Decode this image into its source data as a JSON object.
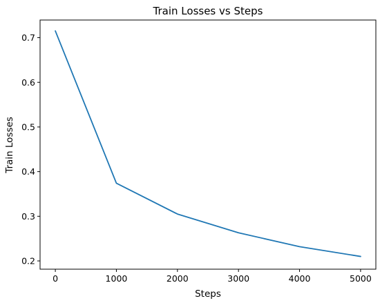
{
  "chart_data": {
    "type": "line",
    "title": "Train Losses vs Steps",
    "xlabel": "Steps",
    "ylabel": "Train Losses",
    "xlim": [
      -250,
      5250
    ],
    "ylim": [
      0.1815,
      0.7395
    ],
    "xticks": [
      0,
      1000,
      2000,
      3000,
      4000,
      5000
    ],
    "xtick_labels": [
      "0",
      "1000",
      "2000",
      "3000",
      "4000",
      "5000"
    ],
    "yticks": [
      0.2,
      0.3,
      0.4,
      0.5,
      0.6,
      0.7
    ],
    "ytick_labels": [
      "0.2",
      "0.3",
      "0.4",
      "0.5",
      "0.6",
      "0.7"
    ],
    "grid": false,
    "series": [
      {
        "color": "#1f77b4",
        "x": [
          0,
          1000,
          2000,
          3000,
          4000,
          5000
        ],
        "y": [
          0.715,
          0.374,
          0.305,
          0.263,
          0.232,
          0.21
        ]
      }
    ]
  }
}
